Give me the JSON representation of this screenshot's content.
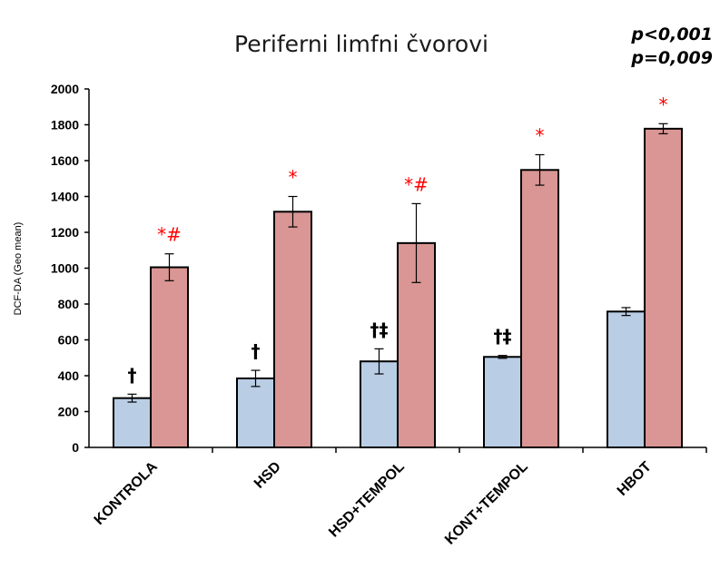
{
  "chart_data": {
    "type": "bar",
    "title": "Periferni limfni čvorovi",
    "ylabel": "DCF-DA (Geo mean)",
    "xlabel": "",
    "ylim": [
      0,
      2000
    ],
    "yticks": [
      0,
      200,
      400,
      600,
      800,
      1000,
      1200,
      1400,
      1600,
      1800,
      2000
    ],
    "grid": false,
    "categories": [
      "KONTROLA",
      "HSD",
      "HSD+TEMPOL",
      "KONT+TEMPOL",
      "HBOT"
    ],
    "series": [
      {
        "color": "#b9cde5",
        "values": [
          275,
          385,
          480,
          505,
          758
        ],
        "errors": [
          22,
          45,
          70,
          8,
          22
        ],
        "annotations": [
          "†",
          "†",
          "†‡",
          "†‡",
          ""
        ],
        "annotation_color": "#000000"
      },
      {
        "color": "#d99694",
        "values": [
          1005,
          1315,
          1140,
          1548,
          1778
        ],
        "errors": [
          75,
          85,
          220,
          85,
          28
        ],
        "annotations": [
          "*#",
          "*",
          "*#",
          "*",
          "*"
        ],
        "annotation_color": "#ff0000"
      }
    ],
    "pvalues": [
      {
        "text": "p<0,001",
        "color": "#376092"
      },
      {
        "text": "p=0,009",
        "color": "#c00000"
      }
    ]
  }
}
